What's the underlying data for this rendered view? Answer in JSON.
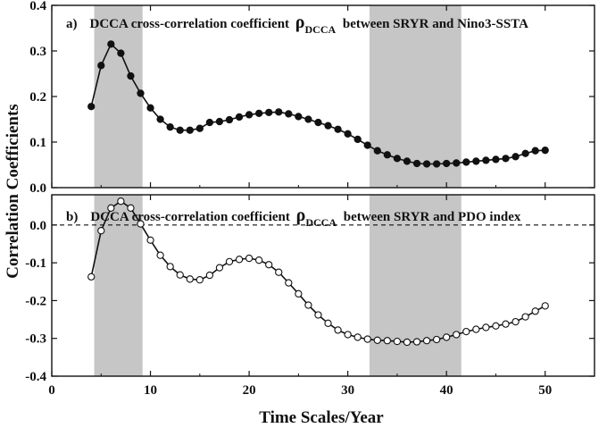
{
  "figure": {
    "ylabel": "Correlation Coefficients",
    "xlabel": "Time Scales/Year"
  },
  "chart_data": [
    {
      "type": "line",
      "panel": "a",
      "title_parts": {
        "letter": "a)",
        "pre": "DCCA cross-correlation coefficient ",
        "rho": "ρ",
        "sub": "DCCA",
        "post": " between SRYR and Nino3-SSTA"
      },
      "xlim": [
        0,
        55
      ],
      "ylim": [
        0,
        0.4
      ],
      "xticks": [
        0,
        10,
        20,
        30,
        40,
        50
      ],
      "xtick_labels": [
        "0",
        "10",
        "20",
        "30",
        "40",
        "50"
      ],
      "yticks": [
        0,
        0.1,
        0.2,
        0.3,
        0.4
      ],
      "ytick_labels": [
        "0.0",
        "0.1",
        "0.2",
        "0.3",
        "0.4"
      ],
      "shaded_x_ranges": [
        [
          4.3,
          9.2
        ],
        [
          32.2,
          41.5
        ]
      ],
      "marker": "filled-circle",
      "series": [
        {
          "x": [
            4,
            5,
            6,
            7,
            8,
            9,
            10,
            11,
            12,
            13,
            14,
            15,
            16,
            17,
            18,
            19,
            20,
            21,
            22,
            23,
            24,
            25,
            26,
            27,
            28,
            29,
            30,
            31,
            32,
            33,
            34,
            35,
            36,
            37,
            38,
            39,
            40,
            41,
            42,
            43,
            44,
            45,
            46,
            47,
            48,
            49,
            50
          ],
          "y": [
            0.178,
            0.268,
            0.315,
            0.295,
            0.245,
            0.207,
            0.175,
            0.15,
            0.133,
            0.126,
            0.126,
            0.13,
            0.143,
            0.145,
            0.149,
            0.155,
            0.16,
            0.163,
            0.165,
            0.166,
            0.162,
            0.156,
            0.15,
            0.143,
            0.136,
            0.128,
            0.118,
            0.106,
            0.093,
            0.081,
            0.072,
            0.064,
            0.058,
            0.053,
            0.052,
            0.052,
            0.053,
            0.054,
            0.056,
            0.058,
            0.06,
            0.062,
            0.064,
            0.068,
            0.075,
            0.081,
            0.082
          ]
        }
      ]
    },
    {
      "type": "line",
      "panel": "b",
      "title_parts": {
        "letter": "b)",
        "pre": "DCCA cross-correlation coefficient ",
        "rho": "ρ",
        "sub": "DCCA",
        "post": " between SRYR and PDO index"
      },
      "xlim": [
        0,
        55
      ],
      "ylim": [
        -0.4,
        0.08
      ],
      "xticks": [
        0,
        10,
        20,
        30,
        40,
        50
      ],
      "xtick_labels": [
        "0",
        "10",
        "20",
        "30",
        "40",
        "50"
      ],
      "yticks": [
        -0.4,
        -0.3,
        -0.2,
        -0.1,
        0.0
      ],
      "ytick_labels": [
        "-0.4",
        "-0.3",
        "-0.2",
        "-0.1",
        "0.0"
      ],
      "shaded_x_ranges": [
        [
          4.3,
          9.2
        ],
        [
          32.2,
          41.5
        ]
      ],
      "reference_line_y": 0,
      "marker": "open-circle",
      "series": [
        {
          "x": [
            4,
            5,
            6,
            7,
            8,
            9,
            10,
            11,
            12,
            13,
            14,
            15,
            16,
            17,
            18,
            19,
            20,
            21,
            22,
            23,
            24,
            25,
            26,
            27,
            28,
            29,
            30,
            31,
            32,
            33,
            34,
            35,
            36,
            37,
            38,
            39,
            40,
            41,
            42,
            43,
            44,
            45,
            46,
            47,
            48,
            49,
            50
          ],
          "y": [
            -0.137,
            -0.015,
            0.045,
            0.063,
            0.045,
            0.003,
            -0.04,
            -0.08,
            -0.11,
            -0.132,
            -0.143,
            -0.145,
            -0.133,
            -0.113,
            -0.097,
            -0.091,
            -0.088,
            -0.093,
            -0.105,
            -0.125,
            -0.153,
            -0.182,
            -0.212,
            -0.238,
            -0.26,
            -0.278,
            -0.29,
            -0.297,
            -0.302,
            -0.305,
            -0.306,
            -0.308,
            -0.31,
            -0.309,
            -0.306,
            -0.303,
            -0.297,
            -0.29,
            -0.282,
            -0.276,
            -0.271,
            -0.267,
            -0.262,
            -0.256,
            -0.243,
            -0.228,
            -0.214
          ]
        }
      ]
    }
  ]
}
